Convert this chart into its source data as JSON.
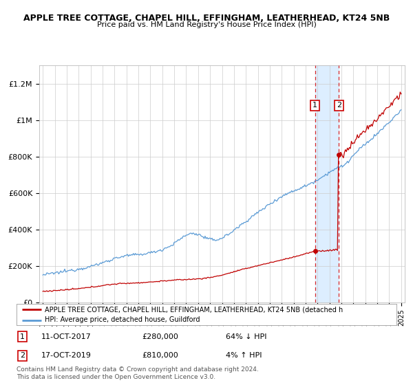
{
  "title": "APPLE TREE COTTAGE, CHAPEL HILL, EFFINGHAM, LEATHERHEAD, KT24 5NB",
  "subtitle": "Price paid vs. HM Land Registry's House Price Index (HPI)",
  "ylim": [
    0,
    1300000
  ],
  "yticks": [
    0,
    200000,
    400000,
    600000,
    800000,
    1000000,
    1200000
  ],
  "ytick_labels": [
    "£0",
    "£200K",
    "£400K",
    "£600K",
    "£800K",
    "£1M",
    "£1.2M"
  ],
  "hpi_color": "#5b9bd5",
  "price_color": "#c00000",
  "marker_color": "#c00000",
  "transaction1": {
    "date": "11-OCT-2017",
    "price": 280000,
    "pct": "64% ↓ HPI",
    "label": "1",
    "x_year": 2017.78
  },
  "transaction2": {
    "date": "17-OCT-2019",
    "price": 810000,
    "pct": "4% ↑ HPI",
    "label": "2",
    "x_year": 2019.79
  },
  "legend_line1": "APPLE TREE COTTAGE, CHAPEL HILL, EFFINGHAM, LEATHERHEAD, KT24 5NB (detached h",
  "legend_line2": "HPI: Average price, detached house, Guildford",
  "footnote": "Contains HM Land Registry data © Crown copyright and database right 2024.\nThis data is licensed under the Open Government Licence v3.0.",
  "highlight_color": "#ddeeff",
  "dashed_color": "#d62728",
  "background_color": "#ffffff",
  "grid_color": "#cccccc",
  "xlim_left": 1994.7,
  "xlim_right": 2025.3
}
